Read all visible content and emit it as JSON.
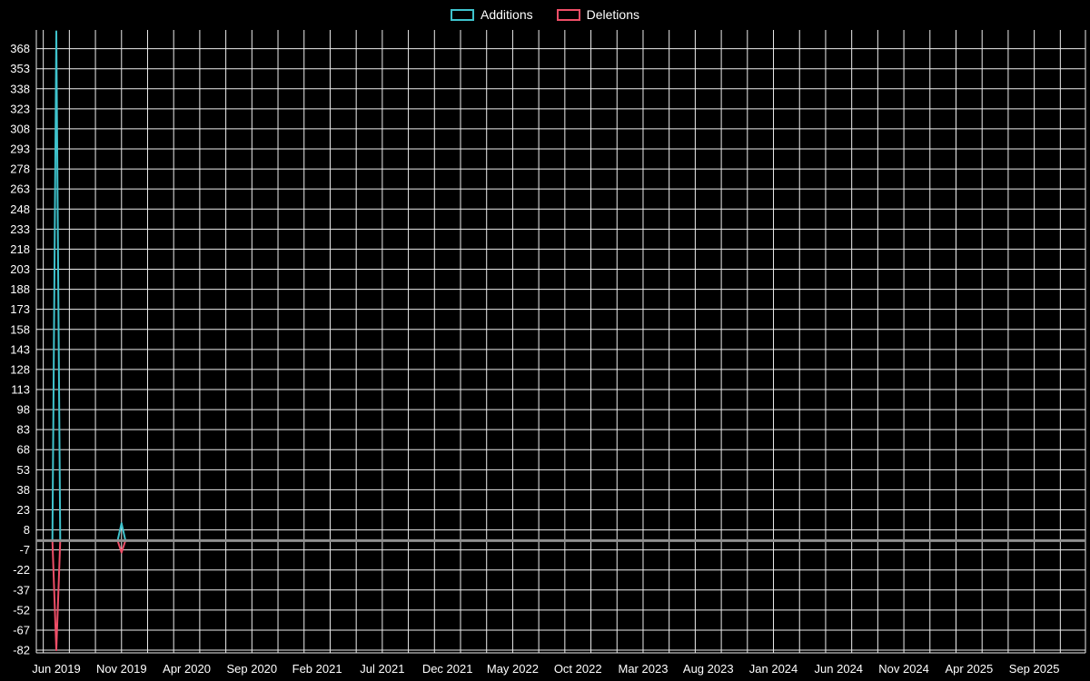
{
  "chart_data": {
    "type": "line",
    "title": "",
    "legend_position": "top-center",
    "background_color": "#000000",
    "text_color": "#ffffff",
    "gridline_color": "#ededed",
    "zero_line_color": "#8f8f8f",
    "grid": true,
    "series": [
      {
        "name": "Additions",
        "color": "#3fc3cd",
        "baseline": 0,
        "points": [
          [
            "2019-06",
            381
          ],
          [
            "2019-11",
            13
          ]
        ]
      },
      {
        "name": "Deletions",
        "color": "#ee4e67",
        "baseline": 0,
        "points": [
          [
            "2019-06",
            -82
          ],
          [
            "2019-11",
            -9
          ]
        ]
      }
    ],
    "x_axis": {
      "tick_labels": [
        "Jun 2019",
        "Nov 2019",
        "Apr 2020",
        "Sep 2020",
        "Feb 2021",
        "Jul 2021",
        "Dec 2021",
        "May 2022",
        "Oct 2022",
        "Mar 2023",
        "Aug 2023",
        "Jan 2024",
        "Jun 2024",
        "Nov 2024",
        "Apr 2025",
        "Sep 2025"
      ],
      "months_between_labels": 5
    },
    "y_axis": {
      "ticks": [
        368,
        353,
        338,
        323,
        308,
        293,
        278,
        263,
        248,
        233,
        218,
        203,
        188,
        173,
        158,
        143,
        128,
        113,
        98,
        83,
        68,
        53,
        38,
        23,
        8,
        -7,
        -22,
        -37,
        -52,
        -67,
        -82
      ],
      "min": -84,
      "max": 382
    }
  }
}
